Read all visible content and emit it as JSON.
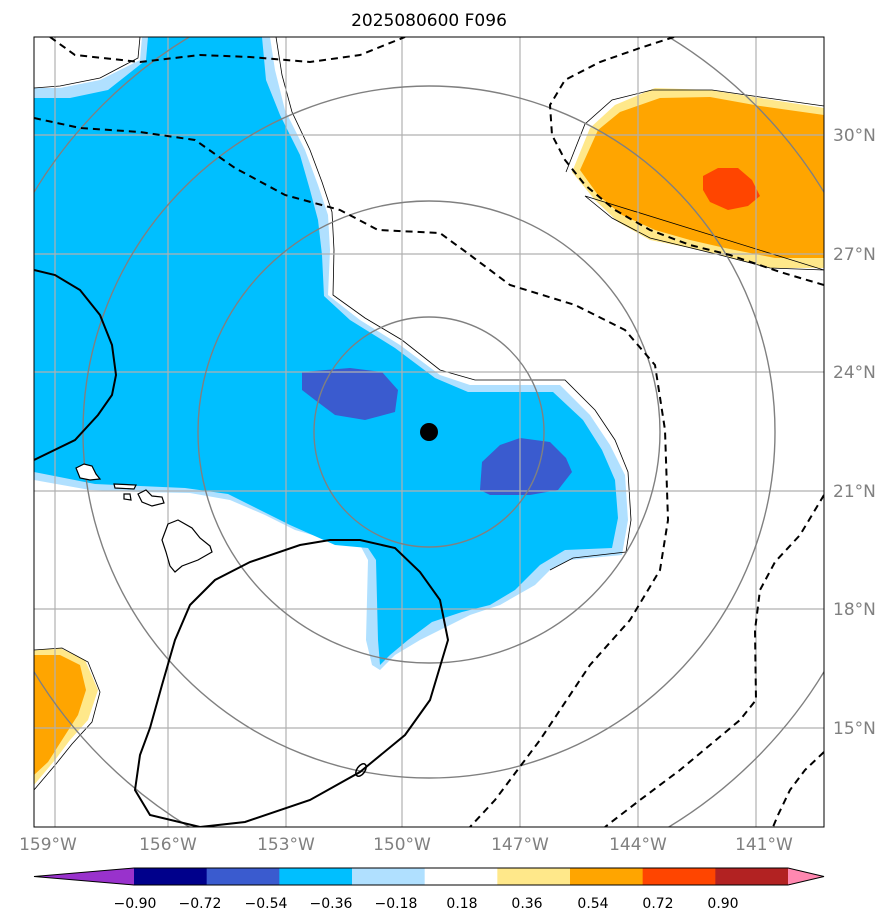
{
  "title": "2025080600 F096",
  "map": {
    "lat_labels": [
      "30°N",
      "27°N",
      "24°N",
      "21°N",
      "18°N",
      "15°N"
    ],
    "lon_labels": [
      "159°W",
      "156°W",
      "153°W",
      "150°W",
      "147°W",
      "144°W",
      "141°W"
    ],
    "center_marker": {
      "lat": 22.5,
      "lon": -149.3
    },
    "range_ring_color": "#808080",
    "gridline_color": "#b0b0b0"
  },
  "colorbar": {
    "tick_labels": [
      "−0.90",
      "−0.72",
      "−0.54",
      "−0.36",
      "−0.18",
      "0.18",
      "0.36",
      "0.54",
      "0.72",
      "0.90"
    ],
    "colors": [
      "#9932cc",
      "#00008b",
      "#3a5bcf",
      "#00bfff",
      "#b0e0ff",
      "#ffffff",
      "#ffe88a",
      "#ffa500",
      "#ff4500",
      "#b22222",
      "#ff88b0"
    ],
    "extend": "both"
  }
}
